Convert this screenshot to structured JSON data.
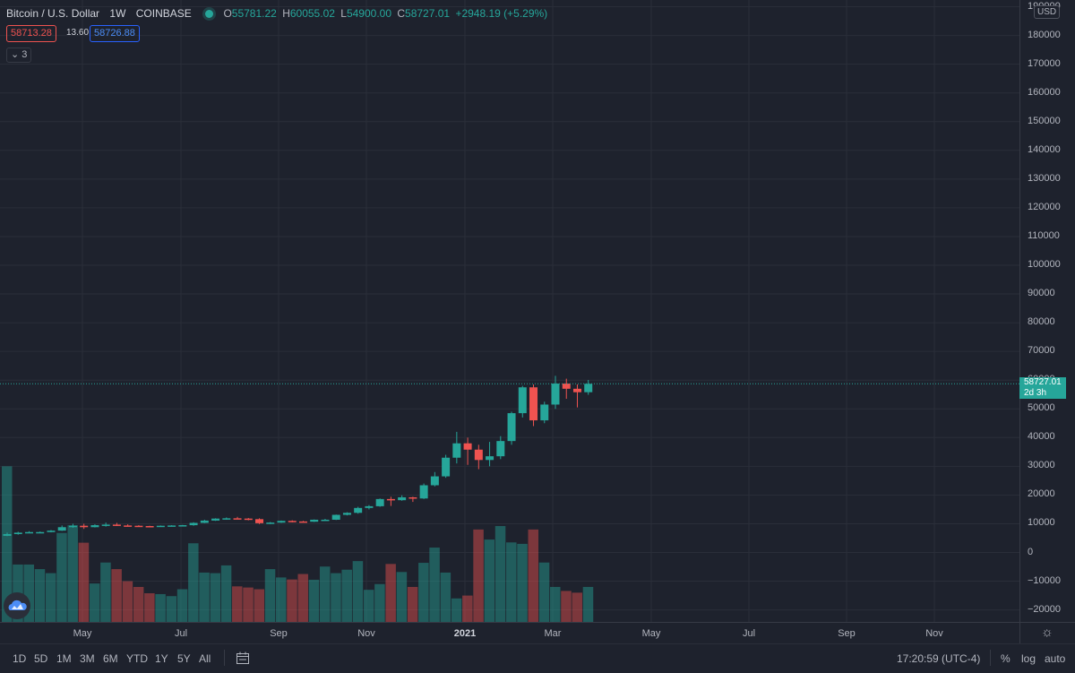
{
  "header": {
    "symbol": "Bitcoin / U.S. Dollar",
    "interval": "1W",
    "exchange": "COINBASE",
    "open_label": "O",
    "open": "55781.22",
    "high_label": "H",
    "high": "60055.02",
    "low_label": "L",
    "low": "54900.00",
    "close_label": "C",
    "close": "58727.01",
    "change": "+2948.19 (+5.29%)"
  },
  "order": {
    "sell": "58713.28",
    "spread": "13.60",
    "buy": "58726.88"
  },
  "indicators": {
    "count_label": "3"
  },
  "price_axis": {
    "currency": "USD",
    "ticks": [
      "190000",
      "180000",
      "170000",
      "160000",
      "150000",
      "140000",
      "130000",
      "120000",
      "110000",
      "100000",
      "90000",
      "80000",
      "70000",
      "60000",
      "50000",
      "40000",
      "30000",
      "20000",
      "10000",
      "0",
      "−10000",
      "−20000"
    ],
    "last_price": "58727.01",
    "countdown": "2d 3h"
  },
  "time_axis": {
    "ticks": [
      "May",
      "Jul",
      "Sep",
      "Nov",
      "2021",
      "Mar",
      "May",
      "Jul",
      "Sep",
      "Nov"
    ]
  },
  "bottom_bar": {
    "ranges": [
      "1D",
      "5D",
      "1M",
      "3M",
      "6M",
      "YTD",
      "1Y",
      "5Y",
      "All"
    ],
    "clock": "17:20:59 (UTC-4)",
    "percent": "%",
    "log": "log",
    "auto": "auto"
  },
  "colors": {
    "up": "#26a69a",
    "down": "#ef5350",
    "background": "#1e222d",
    "grid": "#2a2e39"
  },
  "icons": {
    "logo": "tradingview-cloud-icon",
    "compare": "calendar-range-icon",
    "settings": "gear-icon"
  },
  "chart_data": {
    "type": "candlestick",
    "title": "Bitcoin / U.S. Dollar",
    "ylim": [
      -22000,
      190000
    ],
    "categories": [
      "2020-03-23",
      "2020-03-30",
      "2020-04-06",
      "2020-04-13",
      "2020-04-20",
      "2020-04-27",
      "2020-05-04",
      "2020-05-11",
      "2020-05-18",
      "2020-05-25",
      "2020-06-01",
      "2020-06-08",
      "2020-06-15",
      "2020-06-22",
      "2020-06-29",
      "2020-07-06",
      "2020-07-13",
      "2020-07-20",
      "2020-07-27",
      "2020-08-03",
      "2020-08-10",
      "2020-08-17",
      "2020-08-24",
      "2020-08-31",
      "2020-09-07",
      "2020-09-14",
      "2020-09-21",
      "2020-09-28",
      "2020-10-05",
      "2020-10-12",
      "2020-10-19",
      "2020-10-26",
      "2020-11-02",
      "2020-11-09",
      "2020-11-16",
      "2020-11-23",
      "2020-11-30",
      "2020-12-07",
      "2020-12-14",
      "2020-12-21",
      "2020-12-28",
      "2021-01-04",
      "2021-01-11",
      "2021-01-18",
      "2021-01-25",
      "2021-02-01",
      "2021-02-08",
      "2021-02-15",
      "2021-02-22",
      "2021-03-01",
      "2021-03-08",
      "2021-03-15",
      "2021-03-22",
      "2021-03-29"
    ],
    "series": [
      {
        "name": "Price",
        "values": [
          {
            "o": 5800,
            "h": 6900,
            "l": 5700,
            "c": 6400
          },
          {
            "o": 6400,
            "h": 7200,
            "l": 6200,
            "c": 6900
          },
          {
            "o": 6900,
            "h": 7400,
            "l": 6700,
            "c": 7100
          },
          {
            "o": 7100,
            "h": 7300,
            "l": 6800,
            "c": 7100
          },
          {
            "o": 7100,
            "h": 7800,
            "l": 7000,
            "c": 7600
          },
          {
            "o": 7600,
            "h": 9400,
            "l": 7500,
            "c": 8800
          },
          {
            "o": 8800,
            "h": 10000,
            "l": 8600,
            "c": 9300
          },
          {
            "o": 9300,
            "h": 10000,
            "l": 8200,
            "c": 8800
          },
          {
            "o": 8800,
            "h": 9800,
            "l": 8700,
            "c": 9500
          },
          {
            "o": 9500,
            "h": 10400,
            "l": 9000,
            "c": 9700
          },
          {
            "o": 9700,
            "h": 10300,
            "l": 9200,
            "c": 9400
          },
          {
            "o": 9400,
            "h": 9800,
            "l": 9200,
            "c": 9300
          },
          {
            "o": 9300,
            "h": 9500,
            "l": 9000,
            "c": 9200
          },
          {
            "o": 9200,
            "h": 9300,
            "l": 8800,
            "c": 9100
          },
          {
            "o": 9100,
            "h": 9400,
            "l": 8900,
            "c": 9300
          },
          {
            "o": 9300,
            "h": 9500,
            "l": 9100,
            "c": 9400
          },
          {
            "o": 9400,
            "h": 9600,
            "l": 9100,
            "c": 9500
          },
          {
            "o": 9500,
            "h": 10500,
            "l": 9300,
            "c": 10300
          },
          {
            "o": 10300,
            "h": 11400,
            "l": 10200,
            "c": 11100
          },
          {
            "o": 11100,
            "h": 11900,
            "l": 11000,
            "c": 11800
          },
          {
            "o": 11800,
            "h": 12200,
            "l": 11400,
            "c": 11900
          },
          {
            "o": 11900,
            "h": 12400,
            "l": 11600,
            "c": 11800
          },
          {
            "o": 11800,
            "h": 12000,
            "l": 11200,
            "c": 11600
          },
          {
            "o": 11600,
            "h": 11900,
            "l": 9900,
            "c": 10200
          },
          {
            "o": 10200,
            "h": 10600,
            "l": 9900,
            "c": 10400
          },
          {
            "o": 10400,
            "h": 11100,
            "l": 10300,
            "c": 11000
          },
          {
            "o": 11000,
            "h": 11200,
            "l": 10500,
            "c": 10800
          },
          {
            "o": 10800,
            "h": 11000,
            "l": 10500,
            "c": 10700
          },
          {
            "o": 10700,
            "h": 11500,
            "l": 10600,
            "c": 11400
          },
          {
            "o": 11400,
            "h": 11700,
            "l": 11200,
            "c": 11400
          },
          {
            "o": 11400,
            "h": 13200,
            "l": 11300,
            "c": 13100
          },
          {
            "o": 13100,
            "h": 14000,
            "l": 12900,
            "c": 13800
          },
          {
            "o": 13800,
            "h": 15900,
            "l": 13500,
            "c": 15500
          },
          {
            "o": 15500,
            "h": 16500,
            "l": 15000,
            "c": 16100
          },
          {
            "o": 16100,
            "h": 18800,
            "l": 15900,
            "c": 18600
          },
          {
            "o": 18600,
            "h": 19400,
            "l": 16200,
            "c": 18200
          },
          {
            "o": 18200,
            "h": 19900,
            "l": 18000,
            "c": 19200
          },
          {
            "o": 19200,
            "h": 19400,
            "l": 17600,
            "c": 18800
          },
          {
            "o": 18800,
            "h": 24000,
            "l": 18600,
            "c": 23400
          },
          {
            "o": 23400,
            "h": 28000,
            "l": 23000,
            "c": 26500
          },
          {
            "o": 26500,
            "h": 34000,
            "l": 26000,
            "c": 33000
          },
          {
            "o": 33000,
            "h": 42000,
            "l": 31000,
            "c": 38000
          },
          {
            "o": 38000,
            "h": 40000,
            "l": 30500,
            "c": 35800
          },
          {
            "o": 35800,
            "h": 37500,
            "l": 29000,
            "c": 32200
          },
          {
            "o": 32200,
            "h": 38500,
            "l": 30000,
            "c": 33500
          },
          {
            "o": 33500,
            "h": 40500,
            "l": 32500,
            "c": 38800
          },
          {
            "o": 38800,
            "h": 49000,
            "l": 37500,
            "c": 48500
          },
          {
            "o": 48500,
            "h": 58000,
            "l": 47000,
            "c": 57500
          },
          {
            "o": 57500,
            "h": 58500,
            "l": 44000,
            "c": 46000
          },
          {
            "o": 46000,
            "h": 52500,
            "l": 45000,
            "c": 51500
          },
          {
            "o": 51500,
            "h": 61500,
            "l": 50000,
            "c": 58800
          },
          {
            "o": 58800,
            "h": 60500,
            "l": 53500,
            "c": 57000
          },
          {
            "o": 57000,
            "h": 58500,
            "l": 50500,
            "c": 55800
          },
          {
            "o": 55800,
            "h": 60055,
            "l": 54900,
            "c": 58727
          }
        ]
      },
      {
        "name": "Volume",
        "values": [
          30000,
          -4200,
          -4200,
          -5800,
          -7200,
          6800,
          9500,
          3400,
          -10800,
          -3500,
          -5800,
          -10000,
          -12000,
          -14200,
          -14500,
          -15200,
          -12800,
          3200,
          -7000,
          -7200,
          -4500,
          -11800,
          -12200,
          -12800,
          -5800,
          -8700,
          -9400,
          -7500,
          -9500,
          -4900,
          -7200,
          -6000,
          -3000,
          -13000,
          -11000,
          -4000,
          -6800,
          -12000,
          -3600,
          1700,
          -7000,
          -16000,
          -15000,
          8000,
          4500,
          9200,
          3500,
          3000,
          8000,
          -3500,
          -12000,
          -13400,
          -14000,
          -12000
        ]
      }
    ]
  }
}
